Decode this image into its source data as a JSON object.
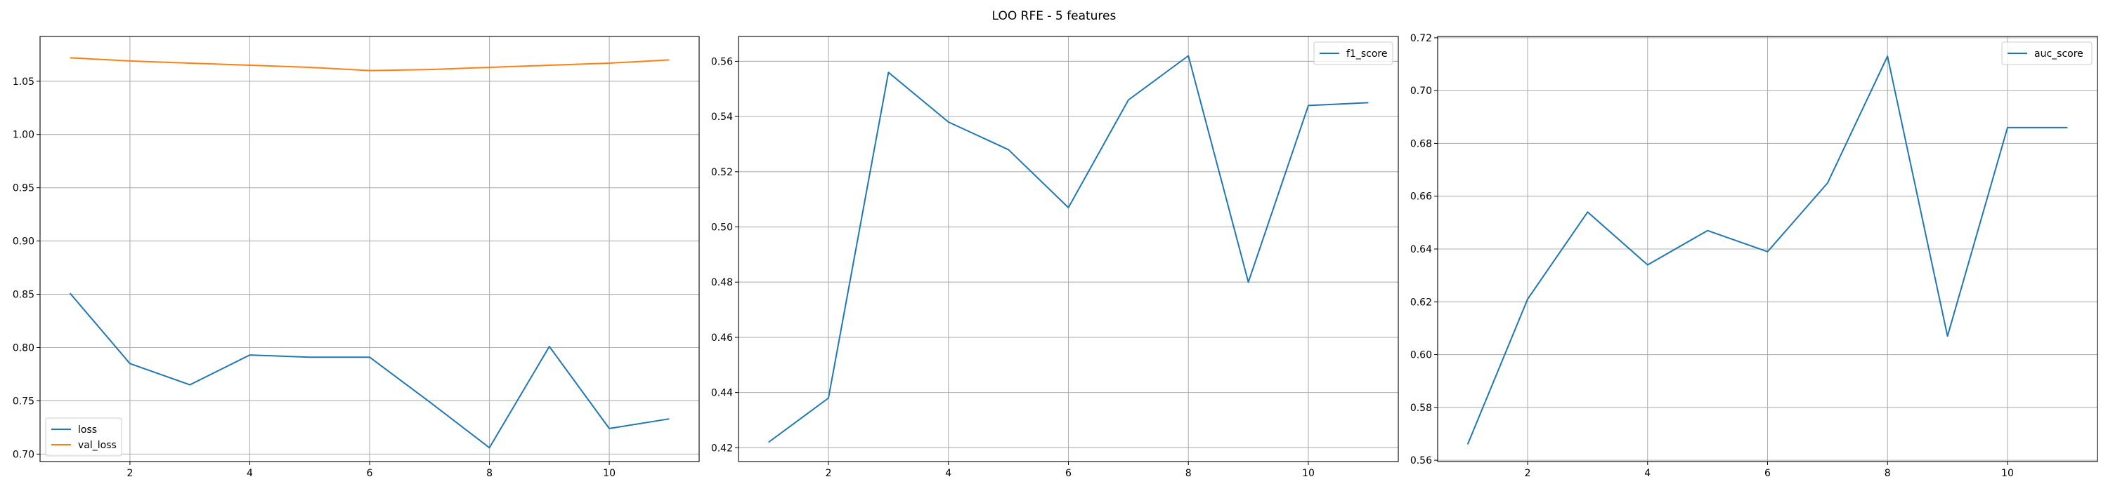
{
  "figure": {
    "suptitle": "LOO RFE - 5 features"
  },
  "chart_data": [
    {
      "type": "line",
      "title": "",
      "xlabel": "",
      "ylabel": "",
      "x": [
        1,
        2,
        3,
        4,
        5,
        6,
        7,
        8,
        9,
        10,
        11
      ],
      "xlim": [
        0.5,
        11.5
      ],
      "ylim": [
        0.693,
        1.092
      ],
      "xticks": [
        2,
        4,
        6,
        8,
        10
      ],
      "yticks": [
        0.7,
        0.75,
        0.8,
        0.85,
        0.9,
        0.95,
        1.0,
        1.05
      ],
      "ytick_labels": [
        "0.70",
        "0.75",
        "0.80",
        "0.85",
        "0.90",
        "0.95",
        "1.00",
        "1.05"
      ],
      "grid": true,
      "legend_position": "bottom-left",
      "series": [
        {
          "name": "loss",
          "color": "#1f77b4",
          "values": [
            0.851,
            0.785,
            0.765,
            0.793,
            0.791,
            0.791,
            0.749,
            0.706,
            0.801,
            0.724,
            0.733
          ]
        },
        {
          "name": "val_loss",
          "color": "#ff7f0e",
          "values": [
            1.072,
            1.069,
            1.067,
            1.065,
            1.063,
            1.06,
            1.061,
            1.063,
            1.065,
            1.067,
            1.07
          ]
        }
      ]
    },
    {
      "type": "line",
      "title": "",
      "xlabel": "",
      "ylabel": "",
      "x": [
        1,
        2,
        3,
        4,
        5,
        6,
        7,
        8,
        9,
        10,
        11
      ],
      "xlim": [
        0.5,
        11.5
      ],
      "ylim": [
        0.415,
        0.569
      ],
      "xticks": [
        2,
        4,
        6,
        8,
        10
      ],
      "yticks": [
        0.42,
        0.44,
        0.46,
        0.48,
        0.5,
        0.52,
        0.54,
        0.56
      ],
      "ytick_labels": [
        "0.42",
        "0.44",
        "0.46",
        "0.48",
        "0.50",
        "0.52",
        "0.54",
        "0.56"
      ],
      "grid": true,
      "legend_position": "top-right",
      "series": [
        {
          "name": "f1_score",
          "color": "#1f77b4",
          "values": [
            0.422,
            0.438,
            0.556,
            0.538,
            0.528,
            0.507,
            0.546,
            0.562,
            0.48,
            0.544,
            0.545
          ]
        }
      ]
    },
    {
      "type": "line",
      "title": "",
      "xlabel": "",
      "ylabel": "",
      "x": [
        1,
        2,
        3,
        4,
        5,
        6,
        7,
        8,
        9,
        10,
        11
      ],
      "xlim": [
        0.5,
        11.5
      ],
      "ylim": [
        0.5595,
        0.7205
      ],
      "xticks": [
        2,
        4,
        6,
        8,
        10
      ],
      "yticks": [
        0.56,
        0.58,
        0.6,
        0.62,
        0.64,
        0.66,
        0.68,
        0.7,
        0.72
      ],
      "ytick_labels": [
        "0.56",
        "0.58",
        "0.60",
        "0.62",
        "0.64",
        "0.66",
        "0.68",
        "0.70",
        "0.72"
      ],
      "grid": true,
      "legend_position": "top-right",
      "series": [
        {
          "name": "auc_score",
          "color": "#1f77b4",
          "values": [
            0.566,
            0.621,
            0.654,
            0.634,
            0.647,
            0.639,
            0.665,
            0.713,
            0.607,
            0.686,
            0.686
          ]
        }
      ]
    }
  ]
}
